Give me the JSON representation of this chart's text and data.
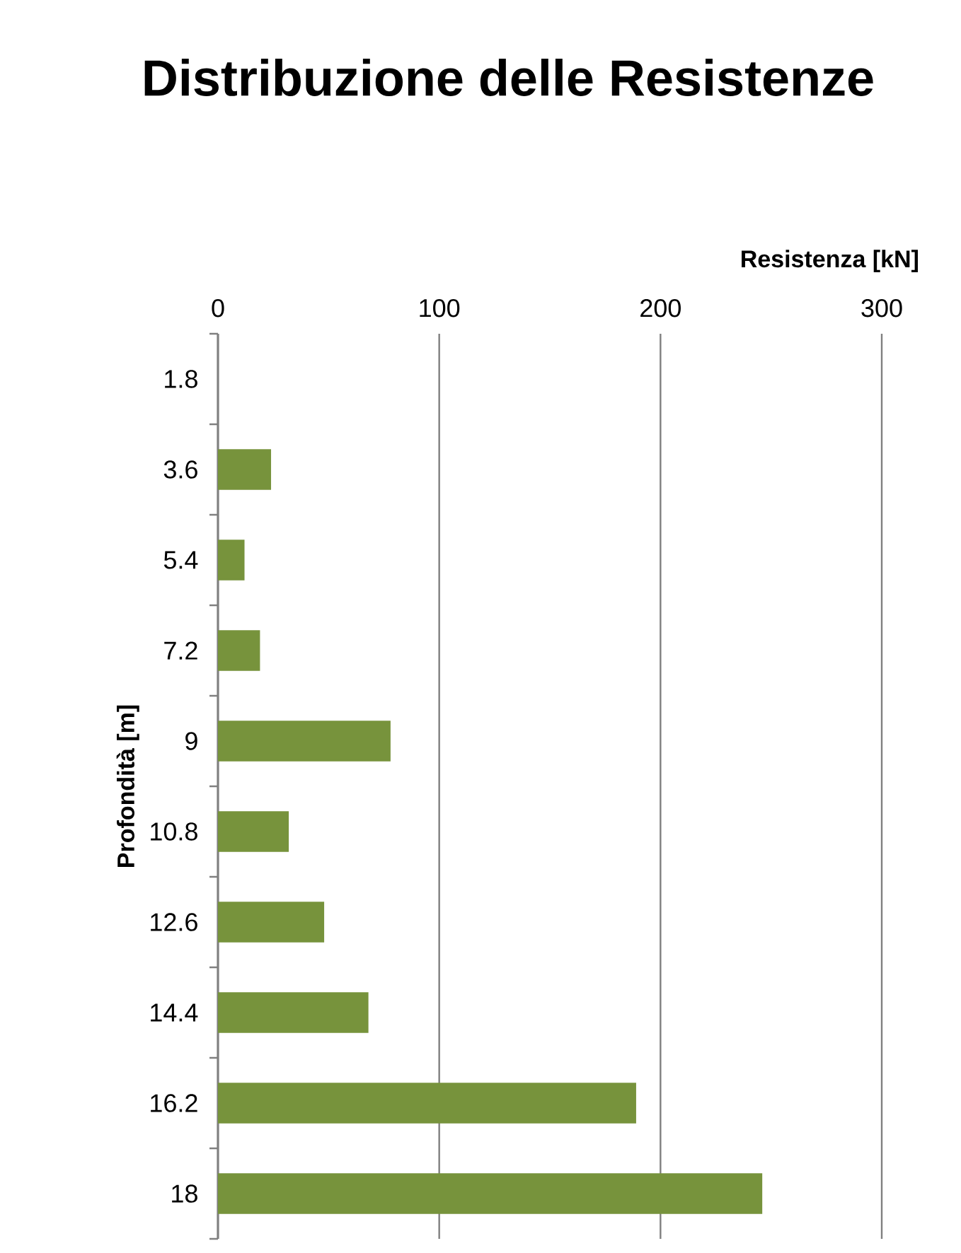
{
  "chart_data": {
    "type": "bar",
    "orientation": "horizontal",
    "title": "Distribuzione delle Resistenze",
    "xlabel": "Resistenza [kN]",
    "ylabel": "Profondità [m]",
    "categories": [
      "1.8",
      "3.6",
      "5.4",
      "7.2",
      "9",
      "10.8",
      "12.6",
      "14.4",
      "16.2",
      "18"
    ],
    "values": [
      0,
      24,
      12,
      19,
      78,
      32,
      48,
      68,
      189,
      246
    ],
    "color": "#77933c",
    "xlim": [
      0,
      300
    ],
    "xticks": [
      0,
      100,
      200,
      300
    ],
    "grid": "x"
  }
}
